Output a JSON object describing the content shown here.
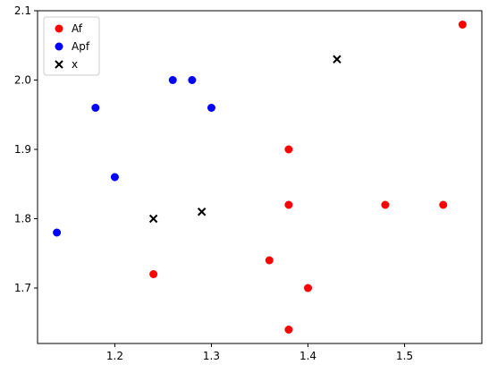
{
  "chart_data": {
    "type": "scatter",
    "title": "",
    "xlabel": "",
    "ylabel": "",
    "xlim": [
      1.12,
      1.58
    ],
    "ylim": [
      1.62,
      2.1
    ],
    "x_ticks": [
      1.2,
      1.3,
      1.4,
      1.5
    ],
    "x_tick_labels": [
      "1.2",
      "1.3",
      "1.4",
      "1.5"
    ],
    "y_ticks": [
      1.7,
      1.8,
      1.9,
      2.0,
      2.1
    ],
    "y_tick_labels": [
      "1.7",
      "1.8",
      "1.9",
      "2.0",
      "2.1"
    ],
    "grid": false,
    "legend": {
      "placement": "top-left",
      "entries": [
        "Af",
        "Apf",
        "x"
      ]
    },
    "series": [
      {
        "name": "Af",
        "marker": "circle",
        "color": "#ff0000",
        "points": [
          [
            1.56,
            2.08
          ],
          [
            1.38,
            1.9
          ],
          [
            1.38,
            1.82
          ],
          [
            1.48,
            1.82
          ],
          [
            1.54,
            1.82
          ],
          [
            1.24,
            1.72
          ],
          [
            1.36,
            1.74
          ],
          [
            1.4,
            1.7
          ],
          [
            1.38,
            1.64
          ]
        ]
      },
      {
        "name": "Apf",
        "marker": "circle",
        "color": "#0000ff",
        "points": [
          [
            1.14,
            1.78
          ],
          [
            1.2,
            1.86
          ],
          [
            1.18,
            1.96
          ],
          [
            1.26,
            2.0
          ],
          [
            1.28,
            2.0
          ],
          [
            1.3,
            1.96
          ]
        ]
      },
      {
        "name": "x",
        "marker": "x",
        "color": "#000000",
        "points": [
          [
            1.43,
            2.03
          ],
          [
            1.24,
            1.8
          ],
          [
            1.29,
            1.81
          ]
        ]
      }
    ]
  }
}
